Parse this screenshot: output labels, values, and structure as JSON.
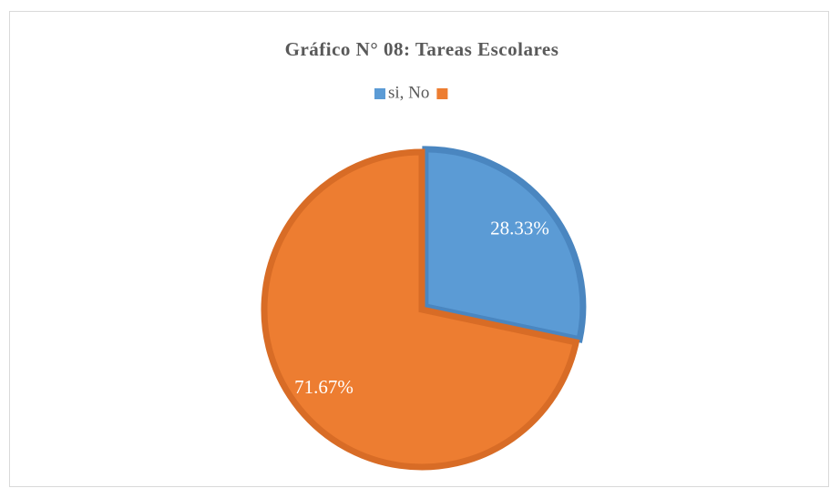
{
  "chart_data": {
    "type": "pie",
    "title": "Gráfico  N° 08: Tareas Escolares",
    "categories": [
      "si, No",
      null
    ],
    "values": [
      28.33,
      71.67
    ],
    "value_labels": [
      "28.33%",
      "71.67%"
    ],
    "colors": [
      "#5b9bd5",
      "#ed7d31"
    ],
    "legend": "top"
  }
}
